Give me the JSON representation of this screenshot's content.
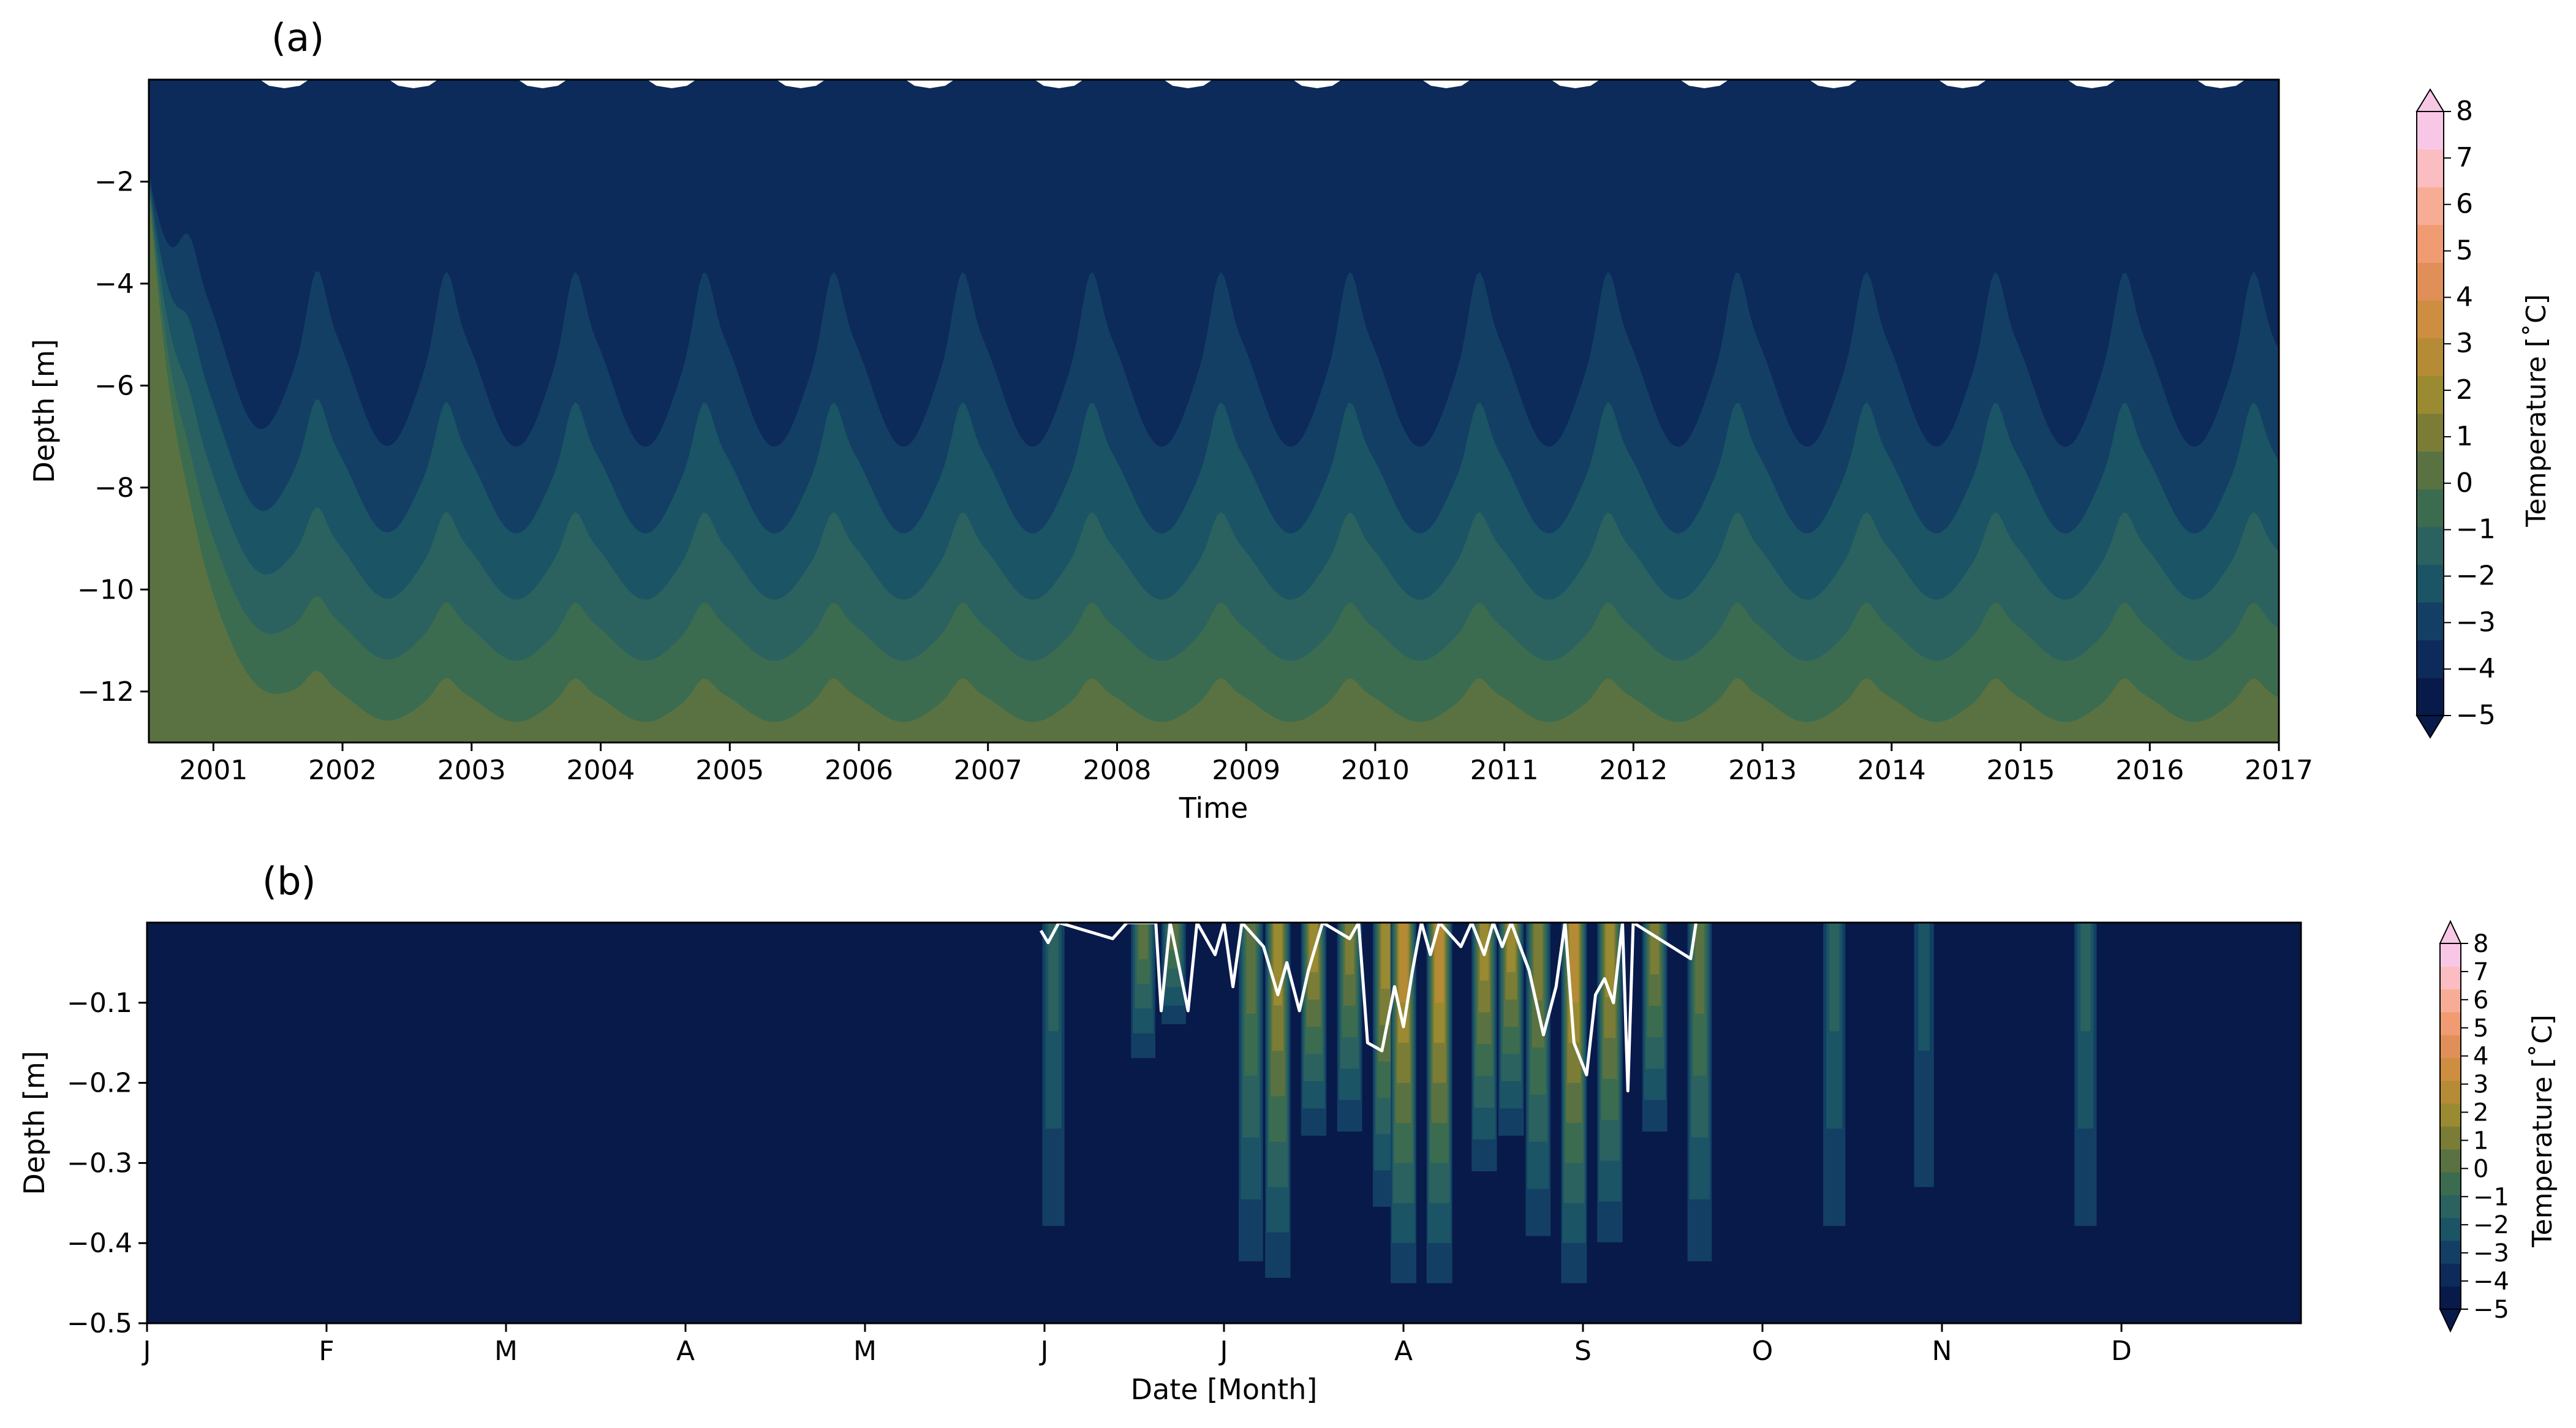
{
  "colors": {
    "levels": [
      "#081a4a",
      "#0c2a5a",
      "#133f64",
      "#1a5465",
      "#2b6260",
      "#3c6c4f",
      "#5a7242",
      "#7b7d37",
      "#9a8a31",
      "#b68b35",
      "#cd8e42",
      "#e08f58",
      "#f09b72",
      "#f7ad95",
      "#fbbdc1",
      "#f9c7e6"
    ],
    "axis": "#000000",
    "isotherm": "#ffffff"
  },
  "chart_data": [
    {
      "type": "heatmap",
      "panel_label": "(a)",
      "xlabel": "Time",
      "ylabel": "Depth [m]",
      "x_ticks": [
        "2001",
        "2002",
        "2003",
        "2004",
        "2005",
        "2006",
        "2007",
        "2008",
        "2009",
        "2010",
        "2011",
        "2012",
        "2013",
        "2014",
        "2015",
        "2016",
        "2017"
      ],
      "xlim": [
        2000.5,
        2017.0
      ],
      "y_ticks": [
        "−2",
        "−4",
        "−6",
        "−8",
        "−10",
        "−12"
      ],
      "ylim": [
        -13.0,
        0.0
      ],
      "colorbar": {
        "label": "Temperature [˚C]",
        "ticks": [
          "−5",
          "−4",
          "−3",
          "−2",
          "−1",
          "0",
          "1",
          "2",
          "3",
          "4",
          "5",
          "6",
          "7",
          "8"
        ],
        "range": [
          -5,
          8
        ],
        "extend": "both"
      },
      "isotherm_depths": [
        {
          "temperature": -4,
          "mean_depth": -6.0,
          "seasonal_amplitude": 1.2
        },
        {
          "temperature": -3,
          "mean_depth": -8.0,
          "seasonal_amplitude": 0.9
        },
        {
          "temperature": -2,
          "mean_depth": -9.6,
          "seasonal_amplitude": 0.6
        },
        {
          "temperature": -1,
          "mean_depth": -11.0,
          "seasonal_amplitude": 0.4
        },
        {
          "temperature": 0,
          "mean_depth": -12.3,
          "seasonal_amplitude": 0.3
        }
      ]
    },
    {
      "type": "heatmap",
      "panel_label": "(b)",
      "xlabel": "Date [Month]",
      "ylabel": "Depth [m]",
      "x_ticks": [
        "J",
        "F",
        "M",
        "A",
        "M",
        "J",
        "J",
        "A",
        "S",
        "O",
        "N",
        "D"
      ],
      "xlim": [
        0,
        12
      ],
      "y_ticks": [
        "−0.1",
        "−0.2",
        "−0.3",
        "−0.4",
        "−0.5"
      ],
      "ylim": [
        -0.5,
        0.0
      ],
      "colorbar": {
        "label": "Temperature [˚C]",
        "ticks": [
          "−5",
          "−4",
          "−3",
          "−2",
          "−1",
          "0",
          "1",
          "2",
          "3",
          "4",
          "5",
          "6",
          "7",
          "8"
        ],
        "range": [
          -5,
          8
        ],
        "extend": "both"
      },
      "warm_events": [
        {
          "month": 5.05,
          "max_temp": -1.5,
          "depth": -0.5
        },
        {
          "month": 5.55,
          "max_temp": 0.5,
          "depth": -0.2
        },
        {
          "month": 5.72,
          "max_temp": 0.0,
          "depth": -0.15
        },
        {
          "month": 6.15,
          "max_temp": 0.5,
          "depth": -0.5
        },
        {
          "month": 6.3,
          "max_temp": 2.5,
          "depth": -0.5
        },
        {
          "month": 6.5,
          "max_temp": 2.0,
          "depth": -0.3
        },
        {
          "month": 6.7,
          "max_temp": 1.5,
          "depth": -0.3
        },
        {
          "month": 6.9,
          "max_temp": 2.5,
          "depth": -0.4
        },
        {
          "month": 7.0,
          "max_temp": 3.5,
          "depth": -0.5
        },
        {
          "month": 7.2,
          "max_temp": 3.0,
          "depth": -0.5
        },
        {
          "month": 7.45,
          "max_temp": 2.0,
          "depth": -0.35
        },
        {
          "month": 7.6,
          "max_temp": 2.0,
          "depth": -0.3
        },
        {
          "month": 7.75,
          "max_temp": 1.5,
          "depth": -0.45
        },
        {
          "month": 7.95,
          "max_temp": 3.0,
          "depth": -0.5
        },
        {
          "month": 8.15,
          "max_temp": 2.5,
          "depth": -0.45
        },
        {
          "month": 8.4,
          "max_temp": 1.0,
          "depth": -0.3
        },
        {
          "month": 8.65,
          "max_temp": 0.5,
          "depth": -0.5
        },
        {
          "month": 9.4,
          "max_temp": -1.5,
          "depth": -0.5
        },
        {
          "month": 9.9,
          "max_temp": -2.5,
          "depth": -0.5
        },
        {
          "month": 10.8,
          "max_temp": -2.0,
          "depth": -0.5
        }
      ],
      "zero_isotherm": [
        {
          "month": 4.98,
          "depth": -0.01
        },
        {
          "month": 5.02,
          "depth": -0.025
        },
        {
          "month": 5.08,
          "depth": 0.0
        },
        {
          "month": 5.38,
          "depth": -0.02
        },
        {
          "month": 5.46,
          "depth": 0.0
        },
        {
          "month": 5.62,
          "depth": 0.0
        },
        {
          "month": 5.65,
          "depth": -0.11
        },
        {
          "month": 5.7,
          "depth": 0.0
        },
        {
          "month": 5.8,
          "depth": -0.11
        },
        {
          "month": 5.85,
          "depth": 0.0
        },
        {
          "month": 5.95,
          "depth": -0.04
        },
        {
          "month": 6.0,
          "depth": 0.0
        },
        {
          "month": 6.05,
          "depth": -0.08
        },
        {
          "month": 6.1,
          "depth": 0.0
        },
        {
          "month": 6.22,
          "depth": -0.03
        },
        {
          "month": 6.3,
          "depth": -0.09
        },
        {
          "month": 6.35,
          "depth": -0.05
        },
        {
          "month": 6.42,
          "depth": -0.11
        },
        {
          "month": 6.47,
          "depth": -0.06
        },
        {
          "month": 6.55,
          "depth": 0.0
        },
        {
          "month": 6.7,
          "depth": -0.02
        },
        {
          "month": 6.75,
          "depth": 0.0
        },
        {
          "month": 6.8,
          "depth": -0.15
        },
        {
          "month": 6.88,
          "depth": -0.16
        },
        {
          "month": 6.95,
          "depth": -0.08
        },
        {
          "month": 7.0,
          "depth": -0.13
        },
        {
          "month": 7.05,
          "depth": -0.06
        },
        {
          "month": 7.1,
          "depth": 0.0
        },
        {
          "month": 7.15,
          "depth": -0.04
        },
        {
          "month": 7.2,
          "depth": 0.0
        },
        {
          "month": 7.32,
          "depth": -0.03
        },
        {
          "month": 7.38,
          "depth": 0.0
        },
        {
          "month": 7.45,
          "depth": -0.04
        },
        {
          "month": 7.5,
          "depth": 0.0
        },
        {
          "month": 7.55,
          "depth": -0.03
        },
        {
          "month": 7.6,
          "depth": 0.0
        },
        {
          "month": 7.7,
          "depth": -0.06
        },
        {
          "month": 7.78,
          "depth": -0.14
        },
        {
          "month": 7.85,
          "depth": -0.08
        },
        {
          "month": 7.9,
          "depth": 0.0
        },
        {
          "month": 7.95,
          "depth": -0.15
        },
        {
          "month": 8.02,
          "depth": -0.19
        },
        {
          "month": 8.07,
          "depth": -0.09
        },
        {
          "month": 8.12,
          "depth": -0.07
        },
        {
          "month": 8.17,
          "depth": -0.1
        },
        {
          "month": 8.22,
          "depth": 0.0
        },
        {
          "month": 8.25,
          "depth": -0.21
        },
        {
          "month": 8.28,
          "depth": 0.0
        },
        {
          "month": 8.6,
          "depth": -0.045
        },
        {
          "month": 8.63,
          "depth": 0.0
        }
      ]
    }
  ]
}
